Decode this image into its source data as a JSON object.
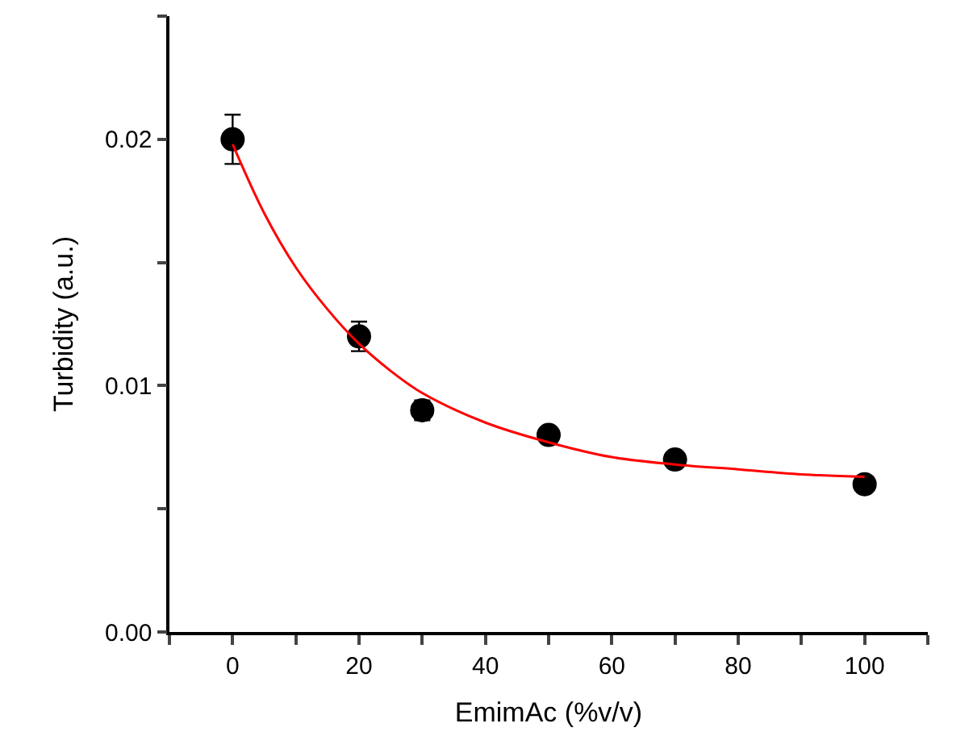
{
  "chart_data": {
    "type": "scatter",
    "xlabel": "EmimAc (%v/v)",
    "ylabel": "Turbidity (a.u.)",
    "xlim": [
      -10,
      110
    ],
    "ylim": [
      0,
      0.025
    ],
    "xticks": [
      {
        "value": -10,
        "label": null
      },
      0,
      {
        "value": 10,
        "label": null
      },
      20,
      {
        "value": 30,
        "label": null
      },
      40,
      {
        "value": 50,
        "label": null
      },
      60,
      {
        "value": 70,
        "label": null
      },
      80,
      {
        "value": 90,
        "label": null
      },
      100,
      {
        "value": 110,
        "label": null
      }
    ],
    "yticks": [
      {
        "value": 0,
        "label": "0.00"
      },
      {
        "value": 0.005,
        "label": null
      },
      {
        "value": 0.01,
        "label": "0.01"
      },
      {
        "value": 0.015,
        "label": null
      },
      {
        "value": 0.02,
        "label": "0.02"
      },
      {
        "value": 0.025,
        "label": null
      }
    ],
    "series": [
      {
        "color": "#000000",
        "marker": "circle",
        "x": [
          0,
          20,
          30,
          50,
          70,
          100
        ],
        "values": [
          0.02,
          0.012,
          0.009,
          0.008,
          0.007,
          0.006
        ],
        "errors": [
          0.001,
          0.0006,
          0.0004,
          null,
          null,
          null
        ]
      },
      {
        "type": "line",
        "color": "#ff0000",
        "x": [
          0,
          5,
          10,
          15,
          20,
          25,
          30,
          40,
          50,
          60,
          70,
          80,
          90,
          100
        ],
        "values": [
          0.0198,
          0.017,
          0.0148,
          0.0131,
          0.0117,
          0.0106,
          0.0097,
          0.0085,
          0.0077,
          0.0071,
          0.0068,
          0.0066,
          0.0064,
          0.0063
        ]
      }
    ]
  }
}
